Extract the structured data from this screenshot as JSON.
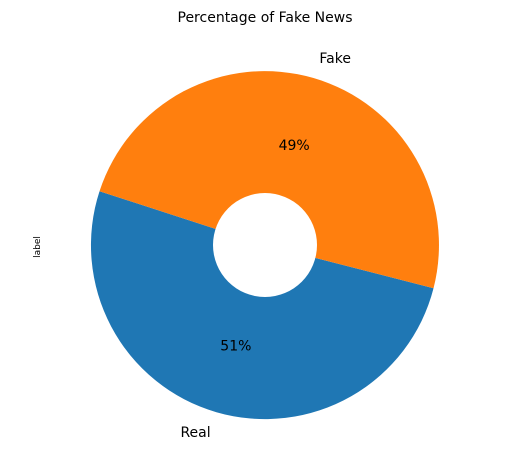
{
  "chart_data": {
    "type": "pie",
    "title": "Percentage of Fake News",
    "ylabel": "label",
    "donut": true,
    "start_angle_deg": 162,
    "direction": "counterclockwise",
    "slices": [
      {
        "label": "Real",
        "value": 51,
        "pct_label": "51%",
        "color": "#1f77b4"
      },
      {
        "label": "Fake",
        "value": 49,
        "pct_label": "49%",
        "color": "#ff7f0e"
      }
    ]
  }
}
